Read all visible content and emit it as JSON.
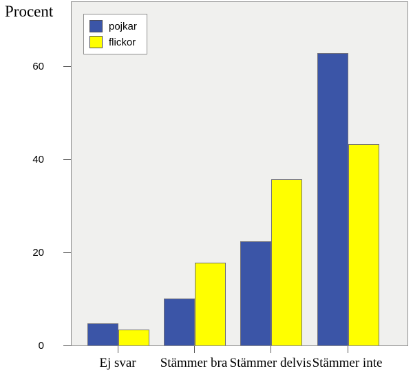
{
  "title": "Procent",
  "chart_data": {
    "type": "bar",
    "title": "Procent",
    "ylabel": "Procent",
    "xlabel": "",
    "categories": [
      "Ej svar",
      "Stämmer bra",
      "Stämmer delvis",
      "Stämmer inte"
    ],
    "series": [
      {
        "name": "pojkar",
        "color": "#3B55A7",
        "values": [
          4.7,
          10.1,
          22.4,
          62.8
        ]
      },
      {
        "name": "flickor",
        "color": "#FFFF00",
        "values": [
          3.4,
          17.7,
          35.6,
          43.2
        ]
      }
    ],
    "yticks": [
      0,
      20,
      40,
      60
    ],
    "ylim": [
      0,
      74
    ],
    "grid": false,
    "legend_position": "top-left-inside",
    "plot_background": "#F0F0EE",
    "colors": {
      "frame_border": "#8e8e8e",
      "tick": "#5a5a5a",
      "text": "#000000"
    }
  },
  "legend": {
    "items": [
      {
        "label": "pojkar",
        "color": "#3B55A7"
      },
      {
        "label": "flickor",
        "color": "#FFFF00"
      }
    ]
  }
}
